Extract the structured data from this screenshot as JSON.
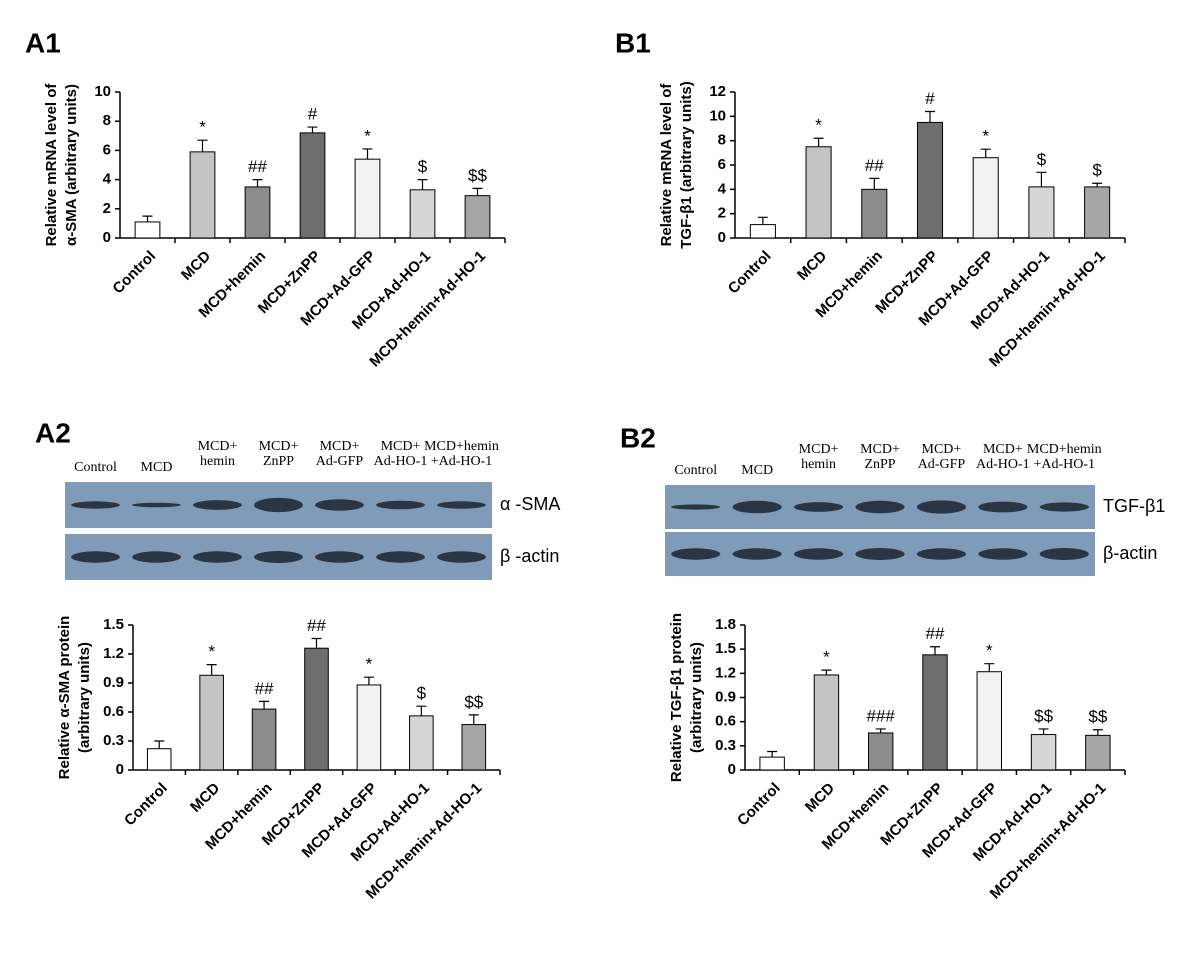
{
  "chart_data": [
    {
      "type": "bar",
      "panel": "A1",
      "ylabel": [
        "Relative mRNA level of",
        "α-SMA (arbitrary units)"
      ],
      "categories": [
        "Control",
        "MCD",
        "MCD+hemin",
        "MCD+ZnPP",
        "MCD+Ad-GFP",
        "MCD+Ad-HO-1",
        "MCD+hemin+Ad-HO-1"
      ],
      "values": [
        1.1,
        5.9,
        3.5,
        7.2,
        5.4,
        3.3,
        2.9
      ],
      "errors": [
        0.4,
        0.8,
        0.5,
        0.4,
        0.7,
        0.7,
        0.5
      ],
      "annotations": [
        null,
        "*",
        "##",
        "#",
        "*",
        "$",
        "$$"
      ],
      "colors": [
        "#ffffff",
        "#c4c4c4",
        "#8c8c8c",
        "#6e6e6e",
        "#f2f2f2",
        "#d6d6d6",
        "#a6a6a6"
      ],
      "ylim": [
        0,
        10
      ],
      "yticks": [
        0,
        2,
        4,
        6,
        8,
        10
      ]
    },
    {
      "type": "bar",
      "panel": "B1",
      "ylabel": [
        "Relative mRNA level of",
        "TGF-β1 (arbitrary units)"
      ],
      "categories": [
        "Control",
        "MCD",
        "MCD+hemin",
        "MCD+ZnPP",
        "MCD+Ad-GFP",
        "MCD+Ad-HO-1",
        "MCD+hemin+Ad-HO-1"
      ],
      "values": [
        1.1,
        7.5,
        4.0,
        9.5,
        6.6,
        4.2,
        4.2
      ],
      "errors": [
        0.6,
        0.7,
        0.9,
        0.9,
        0.7,
        1.2,
        0.3
      ],
      "annotations": [
        null,
        "*",
        "##",
        "#",
        "*",
        "$",
        "$"
      ],
      "colors": [
        "#ffffff",
        "#c4c4c4",
        "#8c8c8c",
        "#6e6e6e",
        "#f2f2f2",
        "#d6d6d6",
        "#a6a6a6"
      ],
      "ylim": [
        0,
        12
      ],
      "yticks": [
        0,
        2,
        4,
        6,
        8,
        10,
        12
      ]
    },
    {
      "type": "bar",
      "ylabel": [
        "Relative α-SMA protein",
        "(arbitrary units)"
      ],
      "categories": [
        "Control",
        "MCD",
        "MCD+hemin",
        "MCD+ZnPP",
        "MCD+Ad-GFP",
        "MCD+Ad-HO-1",
        "MCD+hemin+Ad-HO-1"
      ],
      "values": [
        0.22,
        0.98,
        0.63,
        1.26,
        0.88,
        0.56,
        0.47
      ],
      "errors": [
        0.08,
        0.11,
        0.08,
        0.1,
        0.08,
        0.1,
        0.1
      ],
      "annotations": [
        null,
        "*",
        "##",
        "##",
        "*",
        "$",
        "$$"
      ],
      "colors": [
        "#ffffff",
        "#c4c4c4",
        "#8c8c8c",
        "#6e6e6e",
        "#f2f2f2",
        "#d6d6d6",
        "#a6a6a6"
      ],
      "ylim": [
        0,
        1.5
      ],
      "yticks": [
        0,
        0.3,
        0.6,
        0.9,
        1.2,
        1.5
      ]
    },
    {
      "type": "bar",
      "ylabel": [
        "Relative TGF-β1 protein",
        "(arbitrary units)"
      ],
      "categories": [
        "Control",
        "MCD",
        "MCD+hemin",
        "MCD+ZnPP",
        "MCD+Ad-GFP",
        "MCD+Ad-HO-1",
        "MCD+hemin+Ad-HO-1"
      ],
      "values": [
        0.16,
        1.18,
        0.46,
        1.43,
        1.22,
        0.44,
        0.43
      ],
      "errors": [
        0.07,
        0.06,
        0.05,
        0.1,
        0.1,
        0.07,
        0.07
      ],
      "annotations": [
        null,
        "*",
        "###",
        "##",
        "*",
        "$$",
        "$$"
      ],
      "colors": [
        "#ffffff",
        "#c4c4c4",
        "#8c8c8c",
        "#6e6e6e",
        "#f2f2f2",
        "#d6d6d6",
        "#a6a6a6"
      ],
      "ylim": [
        0,
        1.8
      ],
      "yticks": [
        0,
        0.3,
        0.6,
        0.9,
        1.2,
        1.5,
        1.8
      ]
    }
  ],
  "blots": [
    {
      "panel": "A2",
      "lanes": [
        [
          "Control"
        ],
        [
          "MCD"
        ],
        [
          "MCD+",
          "hemin"
        ],
        [
          "MCD+",
          "ZnPP"
        ],
        [
          "MCD+",
          "Ad-GFP"
        ],
        [
          "MCD+",
          "Ad-HO-1"
        ],
        [
          "MCD+hemin",
          "+Ad-HO-1"
        ]
      ],
      "rows": [
        "α -SMA",
        "β -actin"
      ]
    },
    {
      "panel": "B2",
      "lanes": [
        [
          "Control"
        ],
        [
          "MCD"
        ],
        [
          "MCD+",
          "hemin"
        ],
        [
          "MCD+",
          "ZnPP"
        ],
        [
          "MCD+",
          "Ad-GFP"
        ],
        [
          "MCD+",
          "Ad-HO-1"
        ],
        [
          "MCD+hemin",
          "+Ad-HO-1"
        ]
      ],
      "rows": [
        "TGF-β1",
        "β-actin"
      ]
    }
  ]
}
